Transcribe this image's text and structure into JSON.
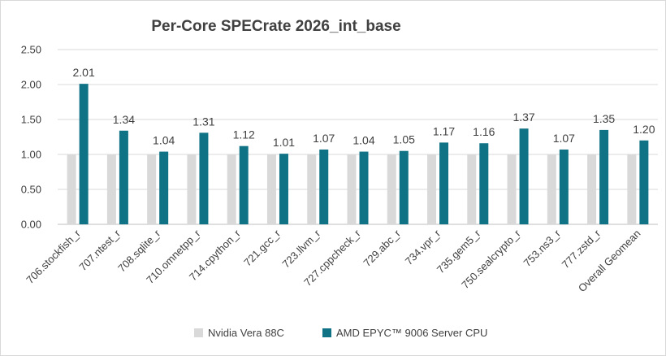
{
  "chart_data": {
    "type": "bar",
    "title": "Per-Core SPECrate 2026_int_base",
    "xlabel": "",
    "ylabel": "",
    "ylim": [
      0,
      2.5
    ],
    "yticks": [
      "0.00",
      "0.50",
      "1.00",
      "1.50",
      "2.00",
      "2.50"
    ],
    "grid": true,
    "legend_position": "bottom",
    "categories": [
      "706.stockfish_r",
      "707.ntest_r",
      "708.sqlite_r",
      "710.omnetpp_r",
      "714.cpython_r",
      "721.gcc_r",
      "723.llvm_r",
      "727.cppcheck_r",
      "729.abc_r",
      "734.vpr_r",
      "735.gem5_r",
      "750.sealcrypto_r",
      "753.ns3_r",
      "777.zstd_r",
      "Overall Geomean"
    ],
    "series": [
      {
        "name": "Nvidia Vera 88C",
        "color": "#d9d9d9",
        "values": [
          1,
          1,
          1,
          1,
          1,
          1,
          1,
          1,
          1,
          1,
          1,
          1,
          1,
          1,
          1
        ],
        "labels": []
      },
      {
        "name": "AMD EPYC™ 9006 Server CPU",
        "color": "#0f7285",
        "values": [
          2.01,
          1.34,
          1.04,
          1.31,
          1.12,
          1.01,
          1.07,
          1.04,
          1.05,
          1.17,
          1.16,
          1.37,
          1.07,
          1.35,
          1.2
        ],
        "labels": [
          "2.01",
          "1.34",
          "1.04",
          "1.31",
          "1.12",
          "1.01",
          "1.07",
          "1.04",
          "1.05",
          "1.17",
          "1.16",
          "1.37",
          "1.07",
          "1.35",
          "1.20"
        ]
      }
    ]
  }
}
